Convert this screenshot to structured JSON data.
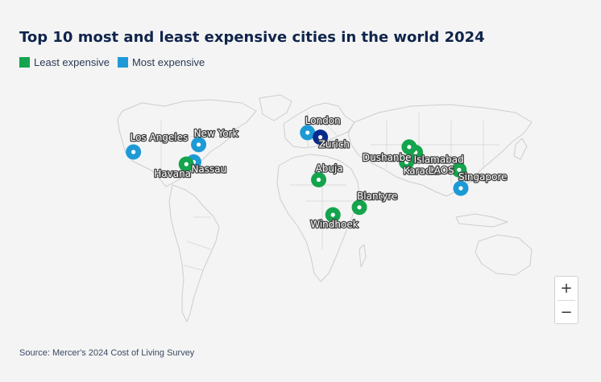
{
  "title": "Top 10 most and least expensive cities in the world 2024",
  "legend": [
    {
      "label": "Least expensive",
      "color": "#14a44d"
    },
    {
      "label": "Most expensive",
      "color": "#1d9ad6"
    }
  ],
  "cities": [
    {
      "name": "London",
      "category": "most",
      "lon": -0.13,
      "lat": 51.51
    },
    {
      "name": "Zurich",
      "category": "most",
      "lon": 8.54,
      "lat": 47.37
    },
    {
      "name": "New York",
      "category": "most",
      "lon": -74.0,
      "lat": 40.71
    },
    {
      "name": "Los Angeles",
      "category": "most",
      "lon": -118.24,
      "lat": 34.05
    },
    {
      "name": "Nassau",
      "category": "most",
      "lon": -77.35,
      "lat": 25.05
    },
    {
      "name": "Singapore",
      "category": "most",
      "lon": 103.82,
      "lat": 1.35
    },
    {
      "name": "Havana",
      "category": "least",
      "lon": -82.38,
      "lat": 23.11
    },
    {
      "name": "Islamabad",
      "category": "least",
      "lon": 73.05,
      "lat": 33.68
    },
    {
      "name": "Dushanbe",
      "category": "least",
      "lon": 68.79,
      "lat": 38.56
    },
    {
      "name": "Karachi",
      "category": "least",
      "lon": 67.0,
      "lat": 24.86
    },
    {
      "name": "LAOS",
      "category": "least",
      "lon": 102.63,
      "lat": 17.97
    },
    {
      "name": "Abuja",
      "category": "least",
      "lon": 7.4,
      "lat": 9.06
    },
    {
      "name": "Blantyre",
      "category": "least",
      "lon": 35.0,
      "lat": -15.79
    },
    {
      "name": "Windhoek",
      "category": "least",
      "lon": 17.08,
      "lat": -22.56
    }
  ],
  "highlight_color": "#0a2a8c",
  "zoom": {
    "in": "+",
    "out": "−"
  },
  "source": "Source: Mercer's 2024 Cost of Living Survey"
}
